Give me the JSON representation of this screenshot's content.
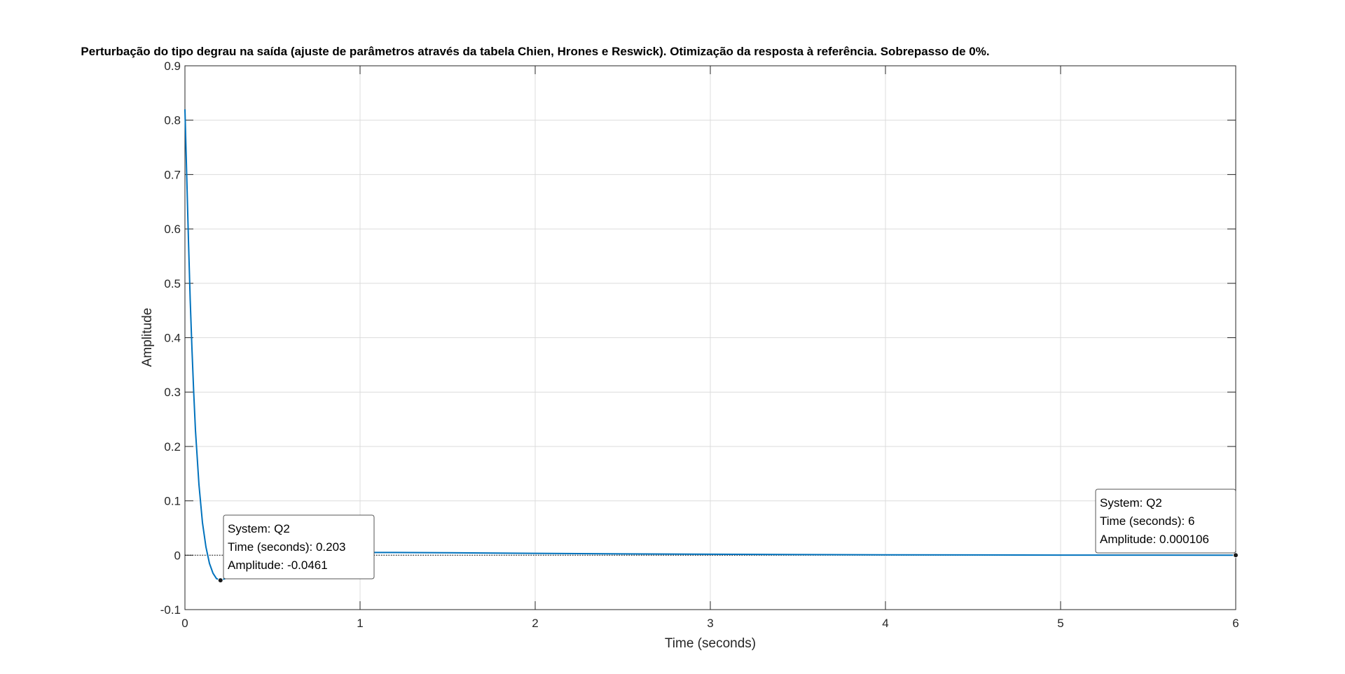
{
  "chart_data": {
    "type": "line",
    "title": "Perturbação do tipo degrau na saída (ajuste de parâmetros através da tabela Chien, Hrones e Reswick). Otimização da resposta à referência. Sobrepasso de 0%.",
    "xlabel": "Time (seconds)",
    "ylabel": "Amplitude",
    "xlim": [
      0,
      6
    ],
    "ylim": [
      -0.1,
      0.9
    ],
    "xticks": [
      0,
      1,
      2,
      3,
      4,
      5,
      6
    ],
    "xtick_labels": [
      "0",
      "1",
      "2",
      "3",
      "4",
      "5",
      "6"
    ],
    "yticks": [
      -0.1,
      0,
      0.1,
      0.2,
      0.3,
      0.4,
      0.5,
      0.6,
      0.7,
      0.8,
      0.9
    ],
    "ytick_labels": [
      "-0.1",
      "0",
      "0.1",
      "0.2",
      "0.3",
      "0.4",
      "0.5",
      "0.6",
      "0.7",
      "0.8",
      "0.9"
    ],
    "grid": true,
    "series": [
      {
        "name": "Q2",
        "color": "#0072BD",
        "x": [
          0,
          0.01,
          0.02,
          0.03,
          0.04,
          0.05,
          0.06,
          0.08,
          0.1,
          0.12,
          0.14,
          0.16,
          0.18,
          0.203,
          0.23,
          0.26,
          0.3,
          0.35,
          0.4,
          0.5,
          0.6,
          0.8,
          1.0,
          1.2,
          1.5,
          2.0,
          2.5,
          3.0,
          3.5,
          4.0,
          4.5,
          5.0,
          5.5,
          6.0
        ],
        "y": [
          0.82,
          0.7,
          0.58,
          0.47,
          0.38,
          0.3,
          0.23,
          0.13,
          0.06,
          0.015,
          -0.015,
          -0.033,
          -0.043,
          -0.0461,
          -0.043,
          -0.035,
          -0.024,
          -0.014,
          -0.007,
          0.0,
          0.003,
          0.0045,
          0.005,
          0.005,
          0.0045,
          0.0035,
          0.0025,
          0.0018,
          0.0012,
          0.0008,
          0.0005,
          0.0003,
          0.0002,
          0.000106
        ]
      }
    ],
    "datatips": [
      {
        "system": "System: Q2",
        "time": "Time (seconds): 0.203",
        "amplitude": "Amplitude: -0.0461",
        "x": 0.203,
        "y": -0.0461
      },
      {
        "system": "System: Q2",
        "time": "Time (seconds): 6",
        "amplitude": "Amplitude: 0.000106",
        "x": 6,
        "y": 0.000106
      }
    ]
  }
}
